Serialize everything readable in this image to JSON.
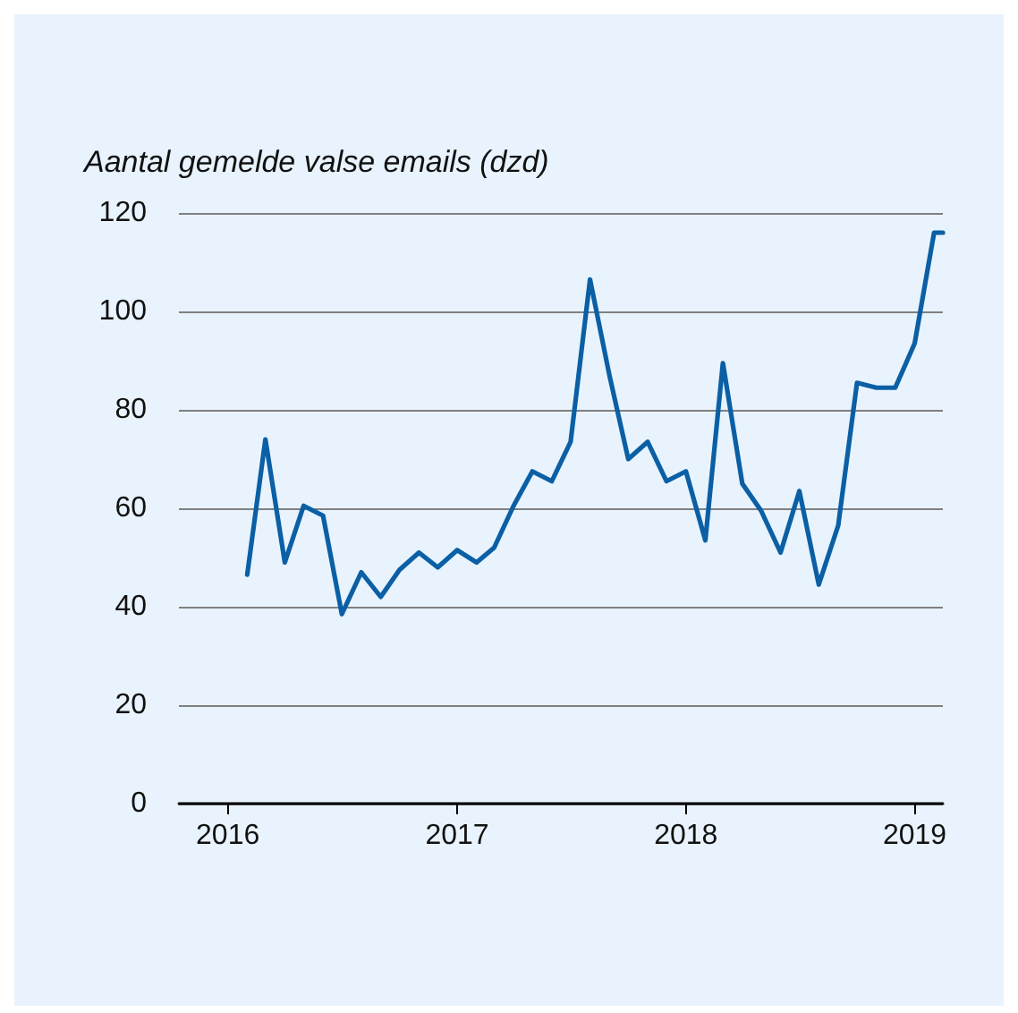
{
  "chart_data": {
    "type": "line",
    "ylabel": "Aantal gemelde valse emails (dzd)",
    "x": [
      "2016-02",
      "2016-03",
      "2016-04",
      "2016-05",
      "2016-06",
      "2016-07",
      "2016-08",
      "2016-09",
      "2016-10",
      "2016-11",
      "2016-12",
      "2017-01",
      "2017-02",
      "2017-03",
      "2017-04",
      "2017-05",
      "2017-06",
      "2017-07",
      "2017-08",
      "2017-09",
      "2017-10",
      "2017-11",
      "2017-12",
      "2018-01",
      "2018-02",
      "2018-03",
      "2018-04",
      "2018-05",
      "2018-06",
      "2018-07",
      "2018-08",
      "2018-09",
      "2018-10",
      "2018-11",
      "2018-12",
      "2019-01",
      "2019-02",
      "2019-02-15"
    ],
    "series": [
      {
        "color": "#0b5fa5",
        "values": [
          46.5,
          74,
          49,
          60.5,
          58.5,
          38.5,
          47,
          42,
          47.5,
          51,
          48,
          51.5,
          49,
          52,
          60.5,
          67.5,
          65.5,
          73.5,
          106.5,
          87,
          70,
          73.5,
          65.5,
          67.5,
          53.5,
          89.5,
          65,
          59.5,
          51,
          63.5,
          44.5,
          56.5,
          85.5,
          84.5,
          84.5,
          93.5,
          116,
          116
        ]
      }
    ],
    "xlim": [
      "2015-10-15",
      "2019-02-15"
    ],
    "xticks": [
      "2016",
      "2017",
      "2018",
      "2019"
    ],
    "ylim": [
      0,
      120
    ],
    "yticks": [
      0,
      20,
      40,
      60,
      80,
      100,
      120
    ],
    "grid": "y",
    "marker": "none",
    "line_style": "solid"
  }
}
